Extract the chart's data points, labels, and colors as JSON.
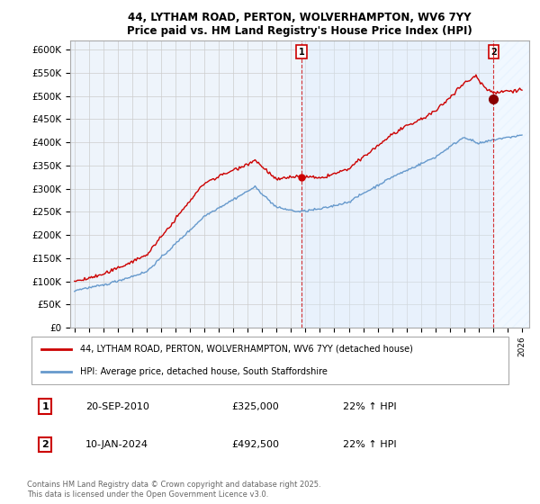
{
  "title": "44, LYTHAM ROAD, PERTON, WOLVERHAMPTON, WV6 7YY",
  "subtitle": "Price paid vs. HM Land Registry's House Price Index (HPI)",
  "ylabel_ticks": [
    "£0",
    "£50K",
    "£100K",
    "£150K",
    "£200K",
    "£250K",
    "£300K",
    "£350K",
    "£400K",
    "£450K",
    "£500K",
    "£550K",
    "£600K"
  ],
  "ytick_values": [
    0,
    50000,
    100000,
    150000,
    200000,
    250000,
    300000,
    350000,
    400000,
    450000,
    500000,
    550000,
    600000
  ],
  "ylim": [
    0,
    620000
  ],
  "xlim_start": 1994.7,
  "xlim_end": 2026.5,
  "red_line_color": "#cc0000",
  "blue_line_color": "#6699cc",
  "sale1_year": 2010.72,
  "sale1_price": 325000,
  "sale2_year": 2024.03,
  "sale2_price": 492500,
  "highlight_color": "#ddeeff",
  "hatch_color": "#aabbcc",
  "legend_red_label": "44, LYTHAM ROAD, PERTON, WOLVERHAMPTON, WV6 7YY (detached house)",
  "legend_blue_label": "HPI: Average price, detached house, South Staffordshire",
  "annotation1_date": "20-SEP-2010",
  "annotation1_price": "£325,000",
  "annotation1_hpi": "22% ↑ HPI",
  "annotation2_date": "10-JAN-2024",
  "annotation2_price": "£492,500",
  "annotation2_hpi": "22% ↑ HPI",
  "footer": "Contains HM Land Registry data © Crown copyright and database right 2025.\nThis data is licensed under the Open Government Licence v3.0.",
  "background_color": "#ffffff",
  "grid_color": "#cccccc",
  "plot_bg_color": "#eef4fb"
}
